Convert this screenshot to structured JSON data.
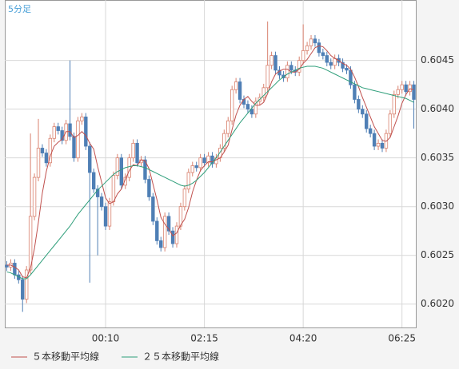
{
  "chart_data": {
    "type": "candlestick",
    "period_label": "5分足",
    "categories": [
      null,
      null,
      null,
      null,
      null,
      null,
      null,
      null,
      null,
      null,
      null,
      null,
      null,
      null,
      null,
      null,
      null,
      null,
      null,
      null,
      null,
      null,
      null,
      null,
      null,
      "00:10",
      null,
      null,
      null,
      null,
      null,
      null,
      null,
      null,
      null,
      null,
      null,
      null,
      null,
      null,
      null,
      null,
      null,
      null,
      null,
      null,
      null,
      null,
      null,
      null,
      "02:15",
      null,
      null,
      null,
      null,
      null,
      null,
      null,
      null,
      null,
      null,
      null,
      null,
      null,
      null,
      null,
      null,
      null,
      null,
      null,
      null,
      null,
      null,
      null,
      null,
      "04:20",
      null,
      null,
      null,
      null,
      null,
      null,
      null,
      null,
      null,
      null,
      null,
      null,
      null,
      null,
      null,
      null,
      null,
      null,
      null,
      null,
      null,
      null,
      null,
      null,
      "06:25",
      null,
      null,
      null
    ],
    "open": [
      0.6024,
      0.60238,
      0.60242,
      0.6023,
      0.60225,
      0.60205,
      0.60235,
      0.6029,
      0.6033,
      0.6036,
      0.60355,
      0.60345,
      0.6037,
      0.60382,
      0.60378,
      0.60368,
      0.60385,
      0.60372,
      0.6035,
      0.60388,
      0.60392,
      0.60362,
      0.60335,
      0.60318,
      0.6031,
      0.603,
      0.6028,
      0.60305,
      0.60332,
      0.6035,
      0.60322,
      0.6033,
      0.6035,
      0.60365,
      0.60345,
      0.60348,
      0.60328,
      0.6031,
      0.60285,
      0.60265,
      0.60258,
      0.6029,
      0.60275,
      0.60262,
      0.6028,
      0.603,
      0.60318,
      0.60335,
      0.60342,
      0.6034,
      0.6035,
      0.60345,
      0.60352,
      0.60344,
      0.6035,
      0.6036,
      0.60375,
      0.60388,
      0.6042,
      0.60428,
      0.6041,
      0.60405,
      0.604,
      0.60395,
      0.60408,
      0.60412,
      0.60422,
      0.60445,
      0.60455,
      0.6044,
      0.60435,
      0.60432,
      0.60445,
      0.6044,
      0.60438,
      0.6045,
      0.6046,
      0.60465,
      0.60472,
      0.60468,
      0.60458,
      0.60455,
      0.60448,
      0.60445,
      0.60452,
      0.60448,
      0.60442,
      0.6044,
      0.60425,
      0.6041,
      0.604,
      0.60395,
      0.6038,
      0.60375,
      0.60362,
      0.60365,
      0.6036,
      0.60375,
      0.60395,
      0.60415,
      0.6042,
      0.60425,
      0.60418,
      0.60425
    ],
    "high": [
      0.60244,
      0.60246,
      0.60246,
      0.60234,
      0.60229,
      0.60239,
      0.60375,
      0.60334,
      0.6039,
      0.60364,
      0.60359,
      0.60374,
      0.60386,
      0.60386,
      0.60382,
      0.60389,
      0.6045,
      0.60376,
      0.60392,
      0.60396,
      0.60396,
      0.60366,
      0.60339,
      0.60322,
      0.60314,
      0.60304,
      0.60309,
      0.60336,
      0.60354,
      0.60354,
      0.60334,
      0.60354,
      0.60369,
      0.60369,
      0.60352,
      0.60352,
      0.60332,
      0.60314,
      0.60289,
      0.60269,
      0.60294,
      0.60294,
      0.60279,
      0.60284,
      0.60304,
      0.60322,
      0.60339,
      0.60346,
      0.60346,
      0.60354,
      0.60354,
      0.60356,
      0.60356,
      0.60354,
      0.60364,
      0.60379,
      0.60392,
      0.60424,
      0.60432,
      0.60432,
      0.60414,
      0.60409,
      0.60404,
      0.60412,
      0.60416,
      0.60426,
      0.6049,
      0.60459,
      0.60459,
      0.60444,
      0.60439,
      0.60449,
      0.60449,
      0.60444,
      0.60454,
      0.60487,
      0.60469,
      0.60476,
      0.60476,
      0.60472,
      0.60462,
      0.60459,
      0.60452,
      0.60456,
      0.60456,
      0.60452,
      0.60446,
      0.60444,
      0.60429,
      0.60414,
      0.60404,
      0.60399,
      0.60384,
      0.60379,
      0.60369,
      0.60369,
      0.60379,
      0.60399,
      0.60419,
      0.60424,
      0.60429,
      0.60429,
      0.60429,
      0.60429
    ],
    "low": [
      0.60234,
      0.60234,
      0.60226,
      0.60221,
      0.60192,
      0.60201,
      0.60231,
      0.60286,
      0.60326,
      0.60351,
      0.60341,
      0.60341,
      0.60366,
      0.60374,
      0.60364,
      0.60364,
      0.60368,
      0.60346,
      0.60346,
      0.60384,
      0.60358,
      0.60222,
      0.60314,
      0.6025,
      0.60296,
      0.60276,
      0.60276,
      0.60301,
      0.60328,
      0.60318,
      0.60318,
      0.60326,
      0.60346,
      0.60341,
      0.60341,
      0.60324,
      0.60306,
      0.60281,
      0.60261,
      0.60254,
      0.60254,
      0.60271,
      0.60258,
      0.60258,
      0.60276,
      0.60296,
      0.60314,
      0.60331,
      0.60336,
      0.60336,
      0.60341,
      0.60341,
      0.6034,
      0.6034,
      0.60346,
      0.60356,
      0.60371,
      0.60384,
      0.60416,
      0.60406,
      0.60401,
      0.60396,
      0.60391,
      0.60391,
      0.60404,
      0.60408,
      0.60418,
      0.60441,
      0.60436,
      0.60431,
      0.60428,
      0.60428,
      0.60436,
      0.60434,
      0.60434,
      0.60446,
      0.60456,
      0.60461,
      0.60464,
      0.60454,
      0.60451,
      0.60444,
      0.60441,
      0.60441,
      0.60444,
      0.60438,
      0.60436,
      0.60421,
      0.60406,
      0.60396,
      0.60391,
      0.60376,
      0.60371,
      0.60358,
      0.60358,
      0.60356,
      0.60356,
      0.60371,
      0.60391,
      0.60411,
      0.60416,
      0.60414,
      0.60414,
      0.6038
    ],
    "close": [
      0.60238,
      0.60242,
      0.6023,
      0.60225,
      0.60205,
      0.60235,
      0.6029,
      0.6033,
      0.6036,
      0.60355,
      0.60345,
      0.6037,
      0.60382,
      0.60378,
      0.60368,
      0.60385,
      0.60372,
      0.6035,
      0.60388,
      0.60392,
      0.60362,
      0.60335,
      0.60318,
      0.6031,
      0.603,
      0.6028,
      0.60305,
      0.60332,
      0.6035,
      0.60322,
      0.6033,
      0.6035,
      0.60365,
      0.60345,
      0.60348,
      0.60328,
      0.6031,
      0.60285,
      0.60265,
      0.60258,
      0.6029,
      0.60275,
      0.60262,
      0.6028,
      0.603,
      0.60318,
      0.60335,
      0.60342,
      0.6034,
      0.6035,
      0.60345,
      0.60352,
      0.60344,
      0.6035,
      0.6036,
      0.60375,
      0.60388,
      0.6042,
      0.60428,
      0.6041,
      0.60405,
      0.604,
      0.60395,
      0.60408,
      0.60412,
      0.60422,
      0.60445,
      0.60455,
      0.6044,
      0.60435,
      0.60432,
      0.60445,
      0.6044,
      0.60438,
      0.6045,
      0.6046,
      0.60465,
      0.60472,
      0.60468,
      0.60458,
      0.60455,
      0.60448,
      0.60445,
      0.60452,
      0.60448,
      0.60442,
      0.6044,
      0.60425,
      0.6041,
      0.604,
      0.60395,
      0.6038,
      0.60375,
      0.60362,
      0.60365,
      0.6036,
      0.60375,
      0.60395,
      0.60415,
      0.6042,
      0.60425,
      0.60418,
      0.60425,
      0.6041
    ],
    "up_color": "#d9826f",
    "down_color": "#4f7fb5",
    "series": [
      {
        "name": "５本移動平均線",
        "color": "#c0504d",
        "values": [
          0.6024,
          0.6024,
          0.60238,
          0.60235,
          0.60228,
          0.60227,
          0.60237,
          0.60257,
          0.60284,
          0.60314,
          0.60336,
          0.60352,
          0.60362,
          0.60366,
          0.60369,
          0.60377,
          0.60377,
          0.60371,
          0.60373,
          0.60377,
          0.60373,
          0.60365,
          0.60359,
          0.60341,
          0.60325,
          0.60309,
          0.60303,
          0.60305,
          0.60313,
          0.60318,
          0.60328,
          0.60337,
          0.60343,
          0.60342,
          0.60348,
          0.60347,
          0.60339,
          0.60323,
          0.60307,
          0.60289,
          0.60282,
          0.60277,
          0.6027,
          0.60273,
          0.60281,
          0.60287,
          0.60299,
          0.60315,
          0.60327,
          0.60337,
          0.60342,
          0.60346,
          0.60346,
          0.60348,
          0.6035,
          0.60356,
          0.60363,
          0.60379,
          0.60394,
          0.60404,
          0.6041,
          0.60413,
          0.60408,
          0.60404,
          0.60404,
          0.60407,
          0.60416,
          0.60428,
          0.60436,
          0.60439,
          0.60441,
          0.60441,
          0.60438,
          0.60438,
          0.60441,
          0.60447,
          0.60451,
          0.60457,
          0.60463,
          0.60465,
          0.60464,
          0.6046,
          0.60455,
          0.60452,
          0.6045,
          0.60447,
          0.60445,
          0.60441,
          0.60433,
          0.60423,
          0.60412,
          0.60402,
          0.60392,
          0.60382,
          0.60375,
          0.60368,
          0.60367,
          0.60371,
          0.60382,
          0.60393,
          0.60406,
          0.60415,
          0.60421,
          0.6042
        ]
      },
      {
        "name": "２５本移動平均線",
        "color": "#2e9e7a",
        "values": [
          0.60233,
          0.60232,
          0.6023,
          0.60228,
          0.60226,
          0.60226,
          0.6023,
          0.60235,
          0.6024,
          0.60245,
          0.6025,
          0.60255,
          0.6026,
          0.60265,
          0.6027,
          0.60275,
          0.6028,
          0.60286,
          0.60292,
          0.60297,
          0.60302,
          0.60307,
          0.60312,
          0.60317,
          0.60321,
          0.60325,
          0.60329,
          0.60333,
          0.60336,
          0.60338,
          0.6034,
          0.60341,
          0.60342,
          0.60342,
          0.60341,
          0.6034,
          0.60338,
          0.60336,
          0.60334,
          0.60332,
          0.6033,
          0.60328,
          0.60326,
          0.60324,
          0.60322,
          0.60321,
          0.60322,
          0.60324,
          0.60327,
          0.60331,
          0.60335,
          0.6034,
          0.60345,
          0.6035,
          0.60356,
          0.60362,
          0.60368,
          0.60374,
          0.6038,
          0.60386,
          0.60391,
          0.60396,
          0.60401,
          0.60406,
          0.6041,
          0.60414,
          0.60418,
          0.60422,
          0.60426,
          0.6043,
          0.60433,
          0.60436,
          0.60438,
          0.6044,
          0.60442,
          0.60443,
          0.60444,
          0.60444,
          0.60444,
          0.60443,
          0.60442,
          0.6044,
          0.60438,
          0.60436,
          0.60434,
          0.60432,
          0.6043,
          0.60428,
          0.60426,
          0.60424,
          0.60422,
          0.60421,
          0.6042,
          0.60419,
          0.60418,
          0.60417,
          0.60416,
          0.60415,
          0.60414,
          0.60413,
          0.60412,
          0.60411,
          0.60409,
          0.60407
        ]
      }
    ],
    "ylim": [
      0.60176,
      0.60512
    ],
    "yticks": [
      {
        "value": 0.602,
        "label": "0.6020"
      },
      0.6025,
      {
        "value": 0.603,
        "label": "0.6030"
      },
      0.6035,
      {
        "value": 0.604,
        "label": "0.6040"
      },
      0.6045
    ],
    "grid": true
  }
}
